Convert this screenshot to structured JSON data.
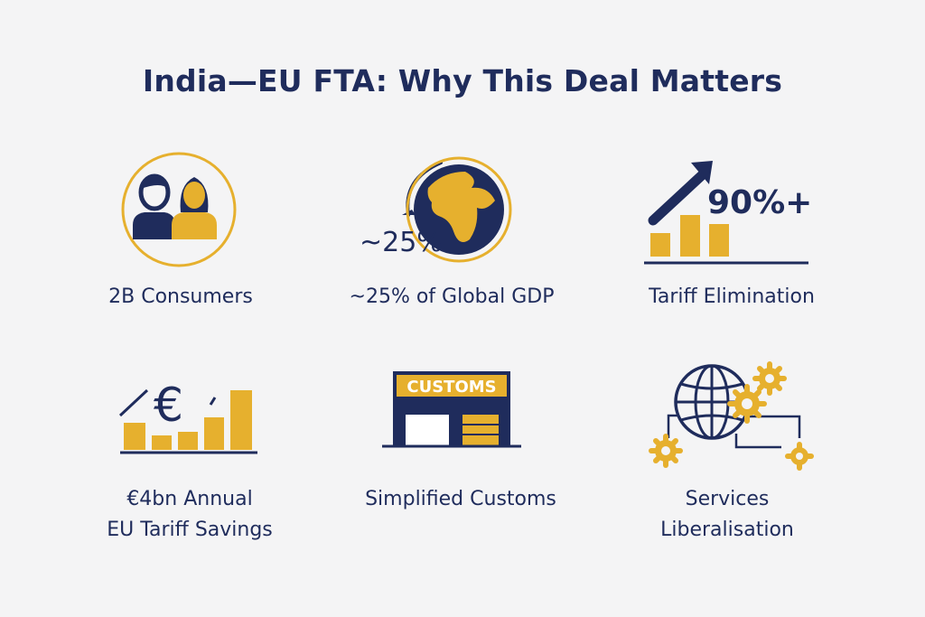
{
  "title": "India—EU FTA: Why This Deal Matters",
  "colors": {
    "navy": "#1f2c5c",
    "gold": "#e6b02e",
    "background": "#f4f4f5"
  },
  "items": [
    {
      "icon": "consumers-people-icon",
      "label": [
        "2B Consumers"
      ]
    },
    {
      "icon": "globe-icon",
      "badge": "~25%",
      "label": [
        "~25% of Global GDP"
      ]
    },
    {
      "icon": "growth-arrow-bar-chart-icon",
      "badge": "90%+",
      "label": [
        "Tariff Elimination"
      ]
    },
    {
      "icon": "euro-bar-chart-icon",
      "badge": "€",
      "label": [
        "€4bn Annual",
        "EU Tariff Savings"
      ]
    },
    {
      "icon": "customs-building-icon",
      "badge": "CUSTOMS",
      "label": [
        "Simplified Customs"
      ]
    },
    {
      "icon": "globe-gears-icon",
      "label": [
        "Services",
        "Liberalisation"
      ]
    }
  ]
}
